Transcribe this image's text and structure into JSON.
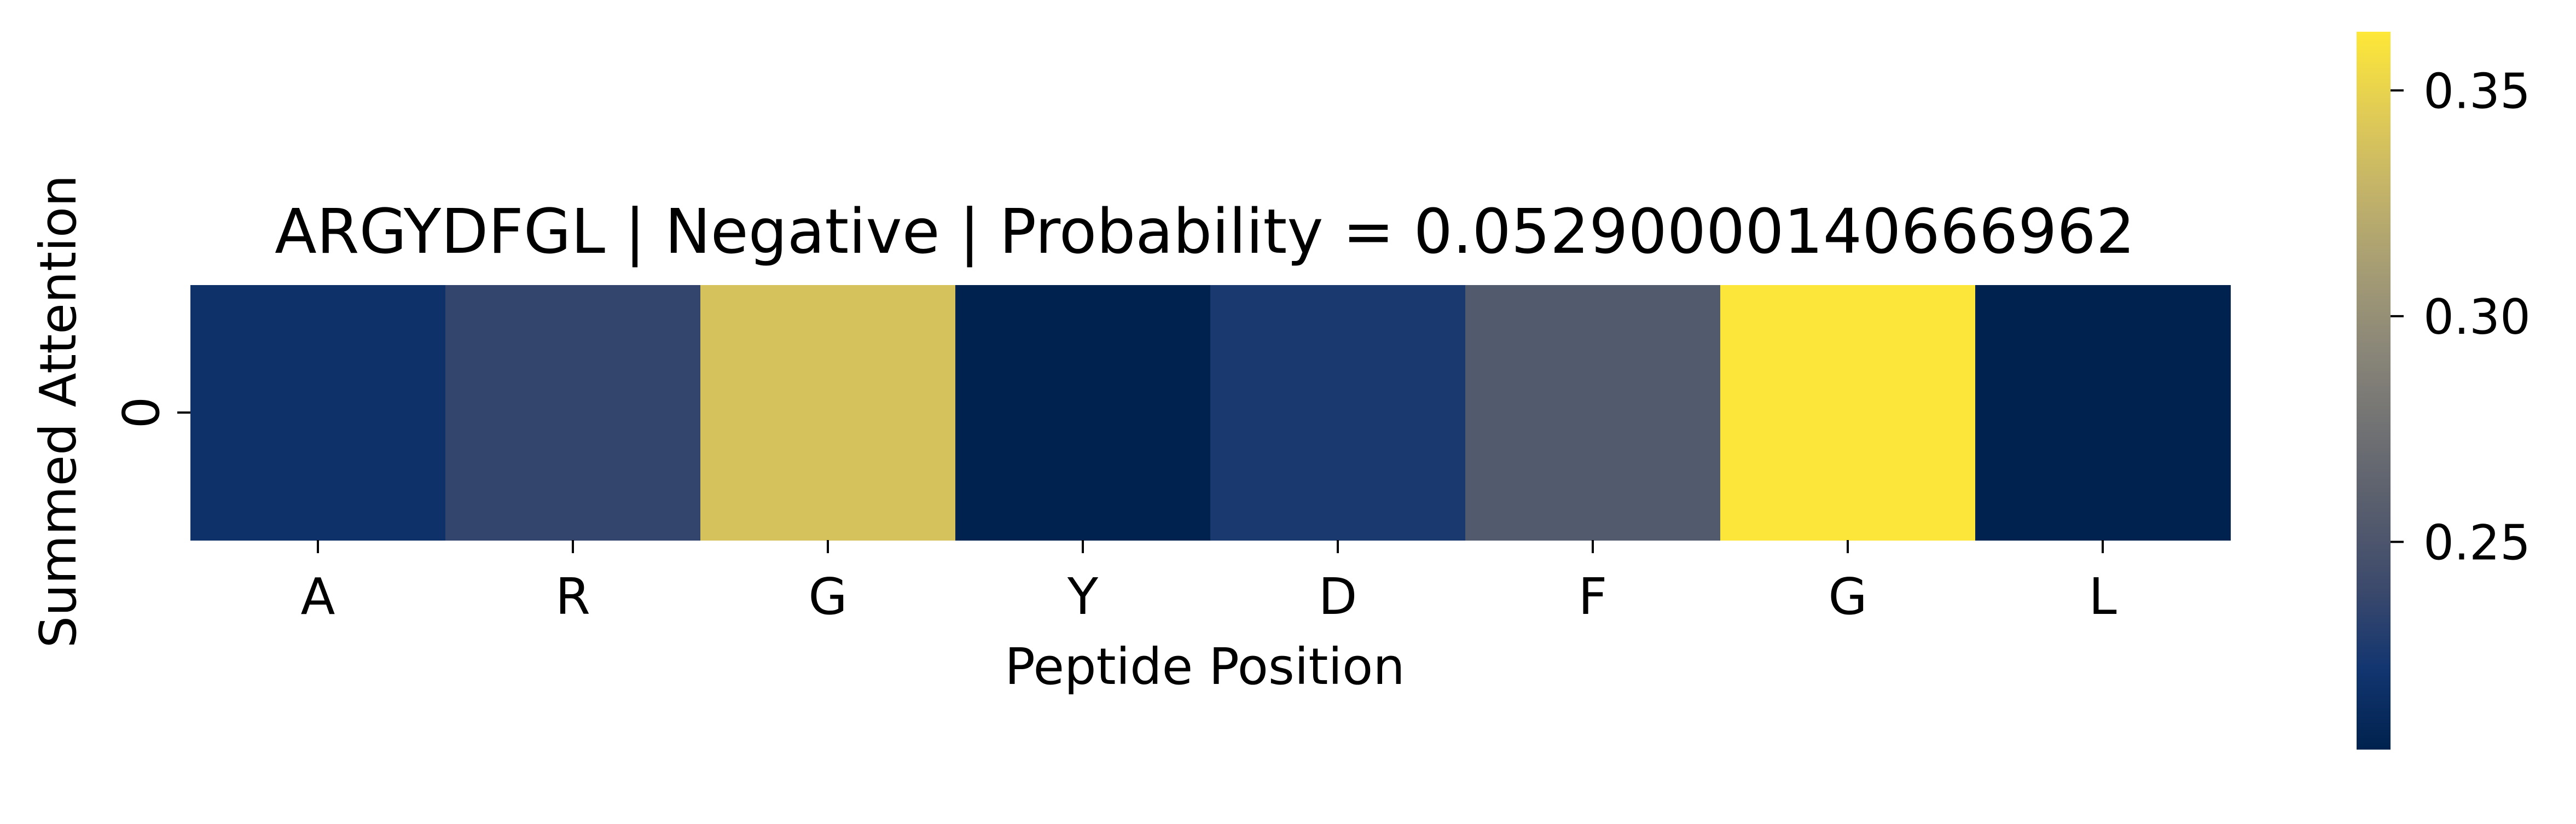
{
  "chart_data": {
    "type": "heatmap",
    "title": "ARGYDFGL | Negative | Probability = 0.05290000140666962",
    "xlabel": "Peptide Position",
    "ylabel": "Summed Attention",
    "x_categories": [
      "A",
      "R",
      "G",
      "Y",
      "D",
      "F",
      "G",
      "L"
    ],
    "y_categories": [
      "0"
    ],
    "values": [
      [
        0.218,
        0.236,
        0.338,
        0.204,
        0.225,
        0.254,
        0.362,
        0.204
      ]
    ],
    "colormap": "cividis",
    "colormap_stops": [
      "#00224e",
      "#123570",
      "#3b496c",
      "#575d6d",
      "#707173",
      "#8a8678",
      "#a59c74",
      "#c3b369",
      "#e1cc55",
      "#fee838"
    ],
    "colorbar": {
      "range": [
        0.204,
        0.363
      ],
      "ticks": [
        0.25,
        0.3,
        0.35
      ],
      "tick_labels": [
        "0.25",
        "0.30",
        "0.35"
      ]
    },
    "grid": false,
    "legend": "colorbar-right"
  }
}
